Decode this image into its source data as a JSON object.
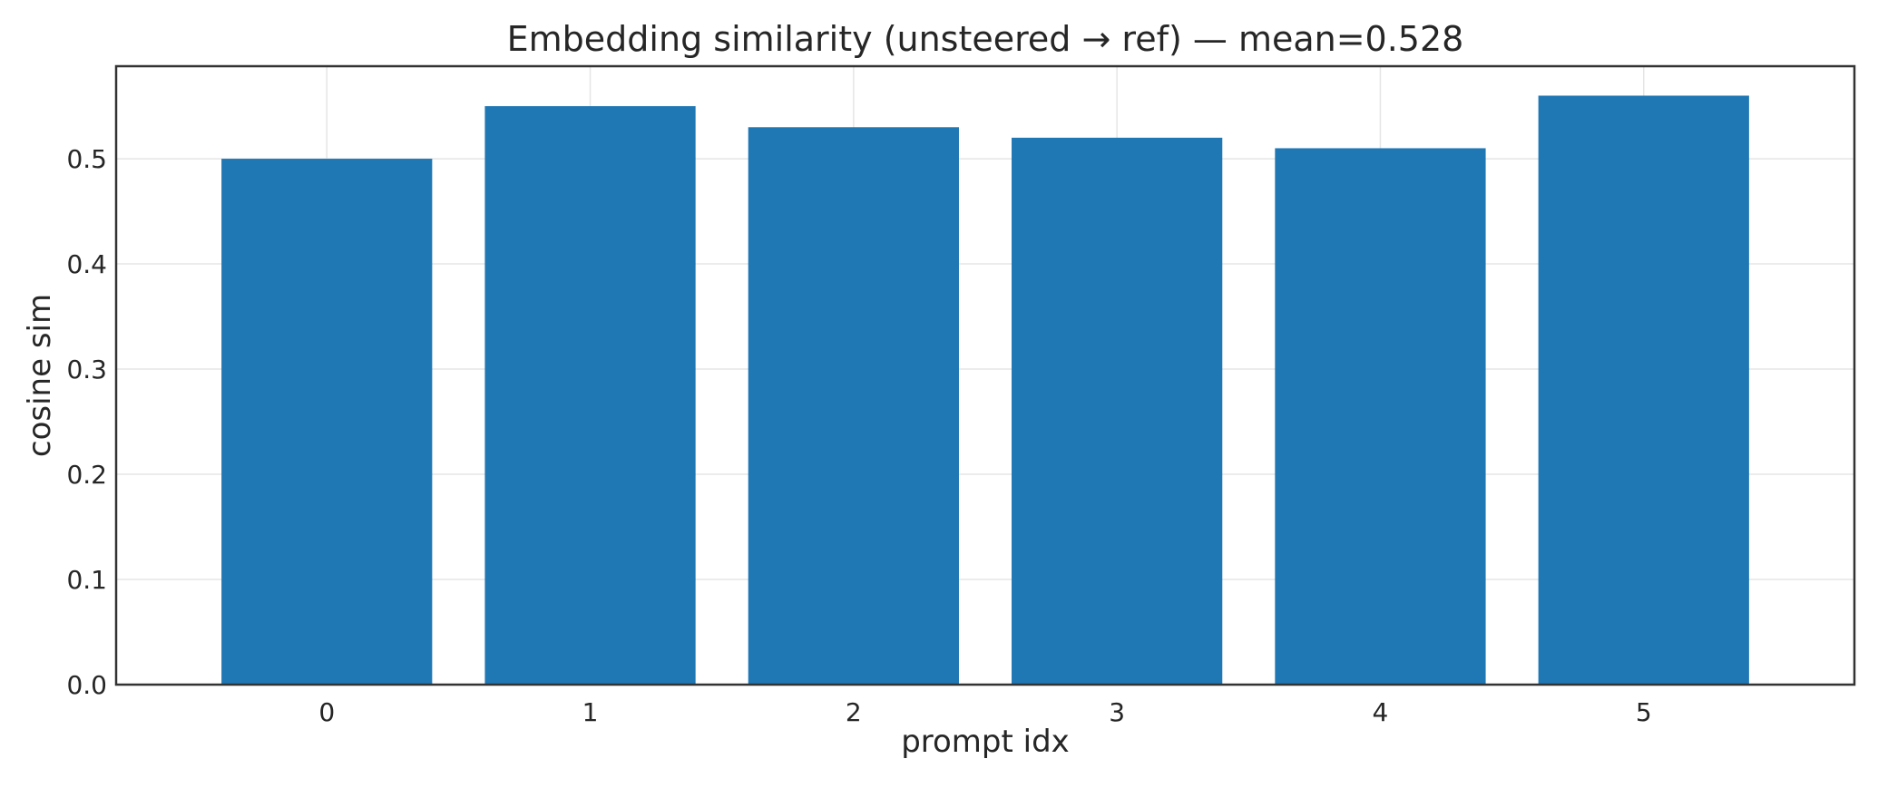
{
  "chart_data": {
    "type": "bar",
    "title": "Embedding similarity (unsteered → ref) — mean=0.528",
    "xlabel": "prompt idx",
    "ylabel": "cosine sim",
    "categories": [
      "0",
      "1",
      "2",
      "3",
      "4",
      "5"
    ],
    "values": [
      0.5,
      0.55,
      0.53,
      0.52,
      0.51,
      0.56
    ],
    "ylim": [
      0,
      0.588
    ],
    "yticks": [
      "0.0",
      "0.1",
      "0.2",
      "0.3",
      "0.4",
      "0.5"
    ],
    "grid": true,
    "bar_color": "#1f77b4",
    "grid_color": "#e5e5e5",
    "spine_color": "#333333"
  }
}
